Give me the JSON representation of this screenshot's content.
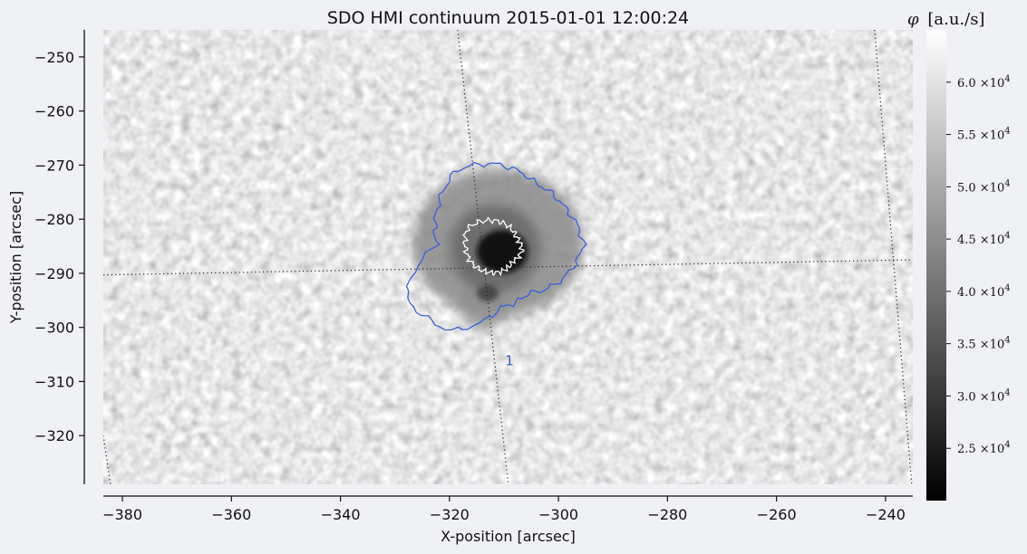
{
  "chart_data": {
    "type": "heatmap",
    "title": "SDO HMI continuum 2015-01-01 12:00:24",
    "xlabel": "X-position [arcsec]",
    "ylabel": "Y-position [arcsec]",
    "xlim": [
      -383.5,
      -235
    ],
    "ylim": [
      -329,
      -245
    ],
    "x_ticks": [
      -380,
      -360,
      -340,
      -320,
      -300,
      -280,
      -260,
      -240
    ],
    "x_tick_labels": [
      "−380",
      "−360",
      "−340",
      "−320",
      "−300",
      "−280",
      "−260",
      "−240"
    ],
    "y_ticks": [
      -250,
      -260,
      -270,
      -280,
      -290,
      -300,
      -310,
      -320
    ],
    "y_tick_labels": [
      "−250",
      "−260",
      "−270",
      "−280",
      "−290",
      "−300",
      "−310",
      "−320"
    ],
    "grid": "dotted heliographic grid lines",
    "colormap": "gray",
    "feature": {
      "name": "sunspot",
      "umbra_center": [
        -312,
        -286
      ],
      "penumbra_extent_x": [
        -326,
        -292
      ],
      "penumbra_extent_y": [
        -308,
        -270
      ]
    },
    "contours": [
      {
        "color": "#3a5fd8",
        "label": "1",
        "label_position": [
          -309,
          -307
        ]
      },
      {
        "color": "#ffffff",
        "label": "",
        "label_position": null
      }
    ],
    "colorbar": {
      "title_prefix": "φ",
      "title_unit": "[a.u./s]",
      "range": [
        20000,
        65000
      ],
      "ticks": [
        60000,
        55000,
        50000,
        45000,
        40000,
        35000,
        30000,
        25000
      ],
      "tick_label_mantissas": [
        "6.0",
        "5.5",
        "5.0",
        "4.5",
        "4.0",
        "3.5",
        "3.0",
        "2.5"
      ],
      "tick_label_base": "×10",
      "tick_label_exponent": "4"
    }
  }
}
